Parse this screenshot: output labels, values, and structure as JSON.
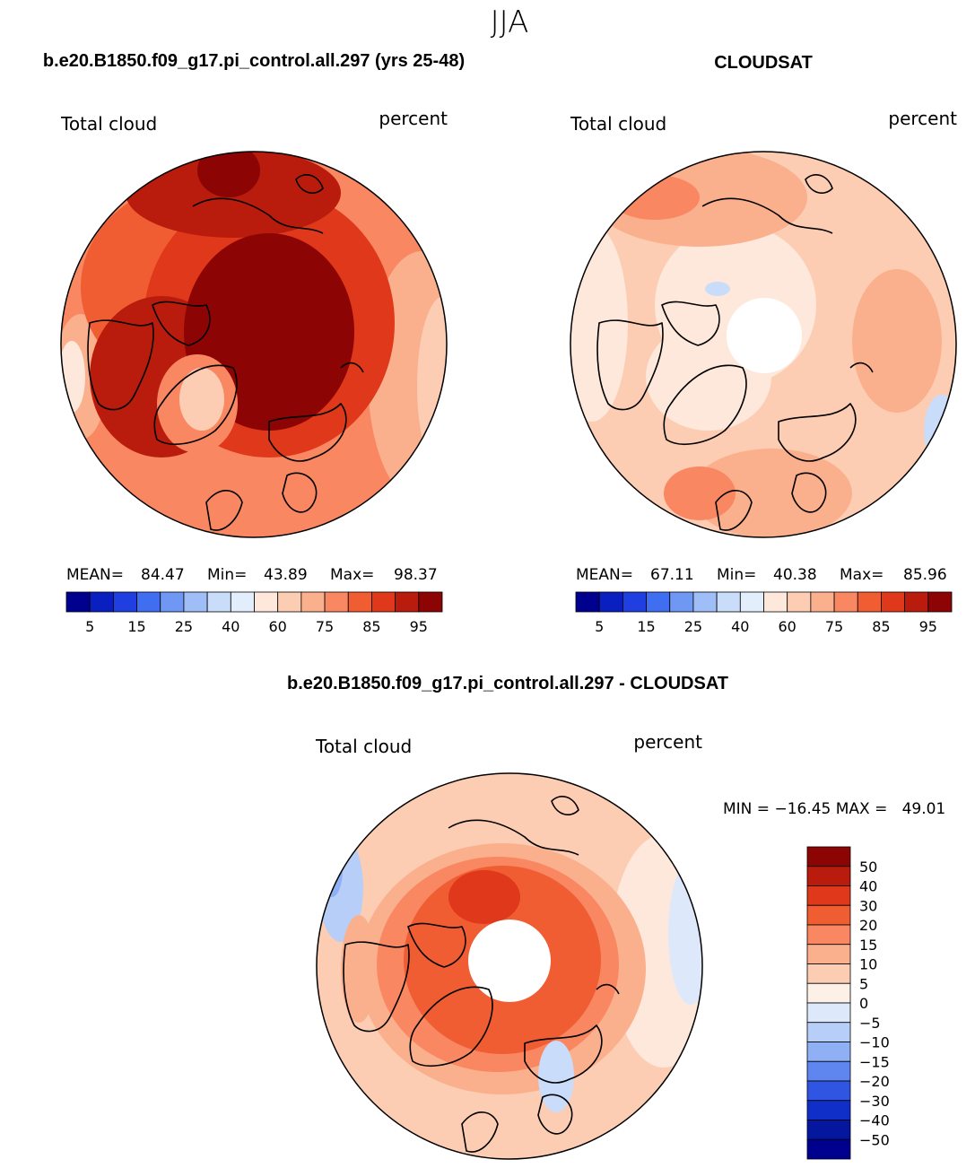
{
  "season": "JJA",
  "panels": [
    {
      "title": "b.e20.B1850.f09_g17.pi_control.all.297 (yrs 25-48)",
      "left_label": "Total cloud",
      "right_label": "percent",
      "mean_label": "MEAN=",
      "mean": "84.47",
      "min_label": "Min=",
      "min": "43.89",
      "max_label": "Max=",
      "max": "98.37"
    },
    {
      "title": "CLOUDSAT",
      "left_label": "Total cloud",
      "right_label": "percent",
      "mean_label": "MEAN=",
      "mean": "67.11",
      "min_label": "Min=",
      "min": "40.38",
      "max_label": "Max=",
      "max": "85.96"
    },
    {
      "title": "b.e20.B1850.f09_g17.pi_control.all.297 - CLOUDSAT",
      "left_label": "Total cloud",
      "right_label": "percent",
      "minmax_text": "MIN = −16.45 MAX =   49.01"
    }
  ],
  "chart_data": [
    {
      "type": "heatmap",
      "projection": "north polar stereographic",
      "title": "b.e20.B1850.f09_g17.pi_control.all.297 (yrs 25-48)",
      "variable": "Total cloud",
      "units": "percent",
      "mean": 84.47,
      "min": 43.89,
      "max": 98.37,
      "colorbar_ticks": [
        "5",
        "15",
        "25",
        "40",
        "60",
        "75",
        "85",
        "95"
      ],
      "colorbar_colors": [
        "#00008f",
        "#0a1fbf",
        "#1f3fe0",
        "#3f6ff0",
        "#6f97f4",
        "#9fbdf7",
        "#c9dcfa",
        "#e3eefc",
        "#fde8db",
        "#fccdb3",
        "#fbb08d",
        "#f98762",
        "#f15d33",
        "#e0381a",
        "#b91c0c",
        "#8c0504"
      ]
    },
    {
      "type": "heatmap",
      "projection": "north polar stereographic",
      "title": "CLOUDSAT",
      "variable": "Total cloud",
      "units": "percent",
      "mean": 67.11,
      "min": 40.38,
      "max": 85.96,
      "colorbar_ticks": [
        "5",
        "15",
        "25",
        "40",
        "60",
        "75",
        "85",
        "95"
      ],
      "colorbar_colors": [
        "#00008f",
        "#0a1fbf",
        "#1f3fe0",
        "#3f6ff0",
        "#6f97f4",
        "#9fbdf7",
        "#c9dcfa",
        "#e3eefc",
        "#fde8db",
        "#fccdb3",
        "#fbb08d",
        "#f98762",
        "#f15d33",
        "#e0381a",
        "#b91c0c",
        "#8c0504"
      ]
    },
    {
      "type": "heatmap",
      "projection": "north polar stereographic",
      "title": "b.e20.B1850.f09_g17.pi_control.all.297 - CLOUDSAT",
      "variable": "Total cloud",
      "units": "percent",
      "min": -16.45,
      "max": 49.01,
      "colorbar_ticks": [
        "50",
        "40",
        "30",
        "20",
        "15",
        "10",
        "5",
        "0",
        "−5",
        "−10",
        "−15",
        "−20",
        "−30",
        "−40",
        "−50"
      ],
      "colorbar_colors": [
        "#8c0504",
        "#b91c0c",
        "#e0381a",
        "#f15d33",
        "#f98762",
        "#fbb08d",
        "#fccdb3",
        "#fdf0e6",
        "#dde9fb",
        "#b7cef8",
        "#8fb0f5",
        "#5f85ef",
        "#2f55e2",
        "#0f2fc8",
        "#05169f",
        "#00008f"
      ]
    }
  ]
}
